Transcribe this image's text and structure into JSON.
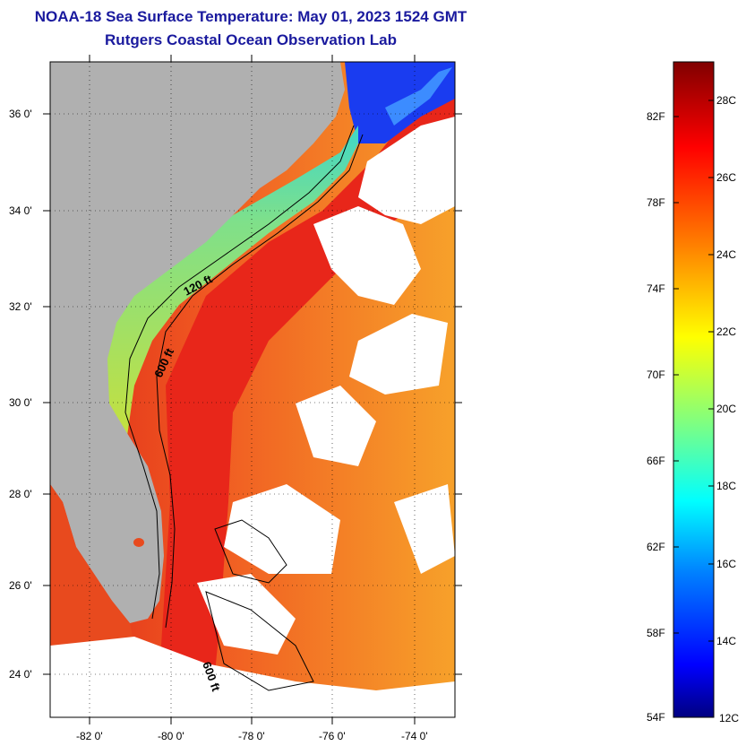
{
  "header": {
    "title": "NOAA-18 Sea Surface Temperature:  May 01, 2023 1524 GMT",
    "subtitle": "Rutgers Coastal Ocean Observation Lab"
  },
  "map": {
    "lat_labels": [
      "36 0'",
      "34 0'",
      "32 0'",
      "30 0'",
      "28 0'",
      "26 0'",
      "24 0'"
    ],
    "lon_labels": [
      "-82 0'",
      "-80 0'",
      "-78 0'",
      "-76 0'",
      "-74 0'"
    ],
    "contour_labels": [
      "120 ft",
      "600 ft",
      "600 ft"
    ],
    "colors": {
      "land": "#b0b0b0",
      "cloud": "#ffffff",
      "warm": "#e83a1e",
      "shelf": "#9be04a"
    }
  },
  "colorbar": {
    "fahrenheit_labels": [
      "82F",
      "78F",
      "74F",
      "70F",
      "66F",
      "62F",
      "58F",
      "54F"
    ],
    "celsius_labels": [
      "28C",
      "26C",
      "24C",
      "22C",
      "20C",
      "18C",
      "16C",
      "14C",
      "12C"
    ],
    "range_c": [
      12,
      29
    ],
    "colors": [
      "#000080",
      "#0000ff",
      "#0080ff",
      "#00ffff",
      "#80ff80",
      "#ffff00",
      "#ff8000",
      "#ff0000",
      "#800000"
    ]
  }
}
